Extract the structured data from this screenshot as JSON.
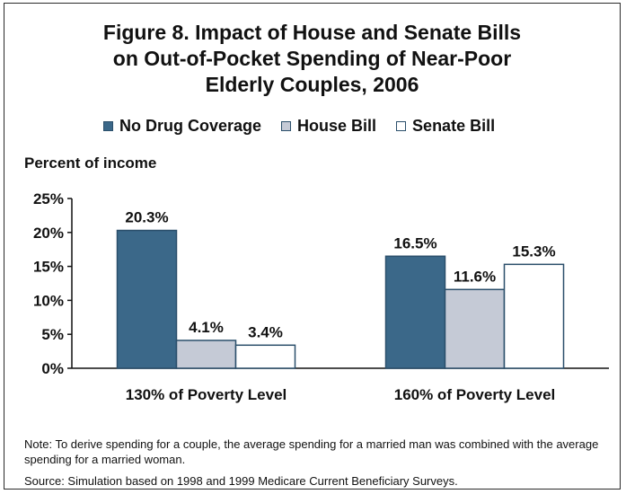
{
  "title_lines": [
    "Figure 8. Impact of House and Senate Bills",
    "on Out-of-Pocket Spending of Near-Poor",
    "Elderly Couples, 2006"
  ],
  "legend": [
    {
      "label": "No Drug Coverage"
    },
    {
      "label": "House Bill"
    },
    {
      "label": "Senate Bill"
    }
  ],
  "note": "Note: To derive spending for a couple, the average spending for a married man was combined with the average spending for a married woman.",
  "source": "Source: Simulation based on 1998 and 1999 Medicare Current Beneficiary Surveys.",
  "chart_data": {
    "type": "bar",
    "title": "Figure 8. Impact of House and Senate Bills on Out-of-Pocket Spending of Near-Poor Elderly Couples, 2006",
    "ylabel": "Percent of income",
    "xlabel": "",
    "categories": [
      "130% of Poverty Level",
      "160% of Poverty Level"
    ],
    "series": [
      {
        "name": "No Drug Coverage",
        "values": [
          20.3,
          16.5
        ],
        "labels": [
          "20.3%",
          "16.5%"
        ],
        "color": "#3b6889",
        "stroke": "#2b4f6b"
      },
      {
        "name": "House Bill",
        "values": [
          4.1,
          11.6
        ],
        "labels": [
          "4.1%",
          "11.6%"
        ],
        "color": "#c5cad6",
        "stroke": "#2b4f6b"
      },
      {
        "name": "Senate Bill",
        "values": [
          3.4,
          15.3
        ],
        "labels": [
          "3.4%",
          "15.3%"
        ],
        "color": "#ffffff",
        "stroke": "#2b4f6b"
      }
    ],
    "ylim": [
      0,
      25
    ],
    "yticks": [
      0,
      5,
      10,
      15,
      20,
      25
    ],
    "ytick_labels": [
      "0%",
      "5%",
      "10%",
      "15%",
      "20%",
      "25%"
    ],
    "grid": false,
    "legend_position": "top"
  }
}
